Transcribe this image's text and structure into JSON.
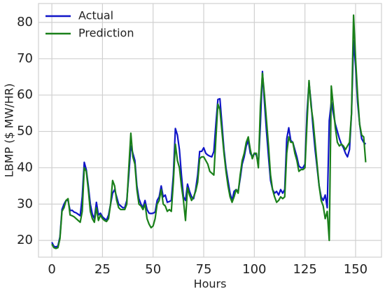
{
  "chart_data": {
    "type": "line",
    "xlabel": "Hours",
    "ylabel": "LBMP ($ MW/HR)",
    "x": [
      0,
      1,
      2,
      3,
      4,
      5,
      6,
      7,
      8,
      9,
      10,
      11,
      12,
      13,
      14,
      15,
      16,
      17,
      18,
      19,
      20,
      21,
      22,
      23,
      24,
      25,
      26,
      27,
      28,
      29,
      30,
      31,
      32,
      33,
      34,
      35,
      36,
      37,
      38,
      39,
      40,
      41,
      42,
      43,
      44,
      45,
      46,
      47,
      48,
      49,
      50,
      51,
      52,
      53,
      54,
      55,
      56,
      57,
      58,
      59,
      60,
      61,
      62,
      63,
      64,
      65,
      66,
      67,
      68,
      69,
      70,
      71,
      72,
      73,
      74,
      75,
      76,
      77,
      78,
      79,
      80,
      81,
      82,
      83,
      84,
      85,
      86,
      87,
      88,
      89,
      90,
      91,
      92,
      93,
      94,
      95,
      96,
      97,
      98,
      99,
      100,
      101,
      102,
      103,
      104,
      105,
      106,
      107,
      108,
      109,
      110,
      111,
      112,
      113,
      114,
      115,
      116,
      117,
      118,
      119,
      120,
      121,
      122,
      123,
      124,
      125,
      126,
      127,
      128,
      129,
      130,
      131,
      132,
      133,
      134,
      135,
      136,
      137,
      138,
      139,
      140,
      141,
      142,
      143,
      144,
      145,
      146,
      147,
      148,
      149,
      150,
      151,
      152,
      153,
      154,
      155
    ],
    "series": [
      {
        "name": "Actual",
        "color": "#0f14c8",
        "values": [
          19.5,
          18.4,
          18.2,
          18.5,
          21,
          28.5,
          30,
          31,
          31,
          28.2,
          28.3,
          27.8,
          27.6,
          27.2,
          26.8,
          32,
          41.5,
          39.5,
          35,
          30,
          27.2,
          26,
          30.5,
          27,
          27.5,
          26.5,
          26,
          25.6,
          27,
          30,
          33,
          34,
          32,
          30,
          29.5,
          29,
          29,
          31,
          38,
          46,
          44,
          42,
          35,
          31.5,
          30,
          29,
          31,
          28.5,
          27.5,
          27.4,
          27.5,
          27.8,
          31,
          32,
          35,
          32,
          32.5,
          30.5,
          30.7,
          31,
          38,
          50.8,
          49,
          45,
          38,
          32,
          31,
          35.5,
          33.5,
          32,
          31.5,
          34,
          38,
          44.5,
          44.5,
          45.5,
          44,
          43.5,
          43.2,
          43,
          44.5,
          52,
          58.8,
          59,
          52,
          45,
          40,
          36.5,
          33,
          31,
          33.5,
          34,
          33.5,
          37,
          41,
          43,
          46,
          47.5,
          44,
          43,
          44,
          43.5,
          41,
          52,
          66.5,
          58,
          50,
          43,
          36.5,
          34,
          33,
          33.5,
          32.5,
          34,
          33,
          34,
          48,
          51,
          47.5,
          47,
          45,
          43,
          40.5,
          40,
          40,
          41,
          55,
          63.5,
          58,
          51,
          45,
          40,
          35,
          32,
          31,
          32.5,
          29,
          53,
          58,
          55,
          52,
          50,
          48,
          46.5,
          45.5,
          44,
          43,
          45,
          55,
          75,
          68,
          58,
          52,
          48,
          47,
          46.5
        ]
      },
      {
        "name": "Prediction",
        "color": "#1a801a",
        "values": [
          19,
          18,
          17.8,
          18,
          20.5,
          28,
          29,
          31,
          31.5,
          27,
          26.8,
          26.5,
          26,
          25.5,
          25,
          28,
          40,
          39,
          34,
          28,
          26,
          25,
          29,
          25.5,
          27,
          26,
          25.5,
          25.2,
          26,
          30,
          36.5,
          35,
          31,
          29,
          28.5,
          28.5,
          28.5,
          30,
          40,
          49.5,
          43,
          41,
          34,
          30,
          29.5,
          28.5,
          30,
          26,
          24.5,
          23.5,
          24,
          26,
          30,
          31,
          34,
          30,
          29.5,
          28,
          28.5,
          28,
          36,
          46.5,
          42,
          40,
          35,
          31,
          25.5,
          34.5,
          32.5,
          31,
          32,
          33.5,
          36,
          42.5,
          43,
          43,
          42,
          41,
          39,
          38.5,
          38,
          48,
          57.5,
          56,
          50,
          44,
          39,
          35,
          32,
          30.5,
          32,
          34,
          33,
          38,
          42,
          44,
          47,
          48.5,
          45,
          42.5,
          44,
          44,
          40,
          57,
          66,
          60,
          53,
          46,
          38,
          34,
          32,
          30.5,
          31,
          32,
          31.5,
          32,
          44,
          48.5,
          47,
          47,
          44,
          42,
          39,
          39.5,
          39.5,
          40,
          52,
          64,
          57,
          53,
          47,
          41,
          35,
          31,
          29.5,
          26,
          28,
          20,
          62.5,
          57,
          51,
          47,
          46,
          46.5,
          46,
          45,
          46,
          47,
          55,
          82,
          70,
          60,
          52,
          49,
          48.5,
          41.5
        ]
      }
    ],
    "xlim": [
      -6.6,
      162.8
    ],
    "xticks": [
      0,
      25,
      50,
      75,
      100,
      125,
      150
    ],
    "ylim": [
      15.4,
      85.2
    ],
    "yticks": [
      20,
      30,
      40,
      50,
      60,
      70,
      80
    ],
    "grid": true,
    "legend": "upper-left"
  }
}
